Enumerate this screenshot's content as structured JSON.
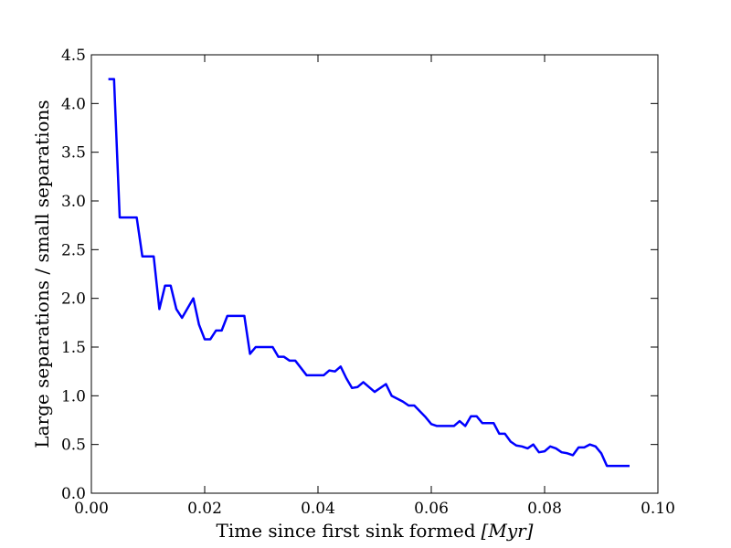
{
  "chart_data": {
    "type": "line",
    "title": "",
    "xlabel": "Time since first sink formed",
    "xlabel_unit": "[Myr]",
    "ylabel": "Large separations / small separations",
    "xlim": [
      0.0,
      0.1
    ],
    "ylim": [
      0.0,
      4.5
    ],
    "xticks": [
      "0.00",
      "0.02",
      "0.04",
      "0.06",
      "0.08",
      "0.10"
    ],
    "yticks": [
      "0.0",
      "0.5",
      "1.0",
      "1.5",
      "2.0",
      "2.5",
      "3.0",
      "3.5",
      "4.0",
      "4.5"
    ],
    "grid": false,
    "legend": "none",
    "series": [
      {
        "color": "#0000ff",
        "x": [
          0.003,
          0.004,
          0.005,
          0.008,
          0.009,
          0.011,
          0.012,
          0.013,
          0.014,
          0.015,
          0.016,
          0.018,
          0.019,
          0.02,
          0.021,
          0.022,
          0.023,
          0.024,
          0.027,
          0.028,
          0.029,
          0.032,
          0.033,
          0.034,
          0.035,
          0.036,
          0.038,
          0.041,
          0.042,
          0.043,
          0.044,
          0.045,
          0.046,
          0.047,
          0.048,
          0.05,
          0.052,
          0.053,
          0.055,
          0.056,
          0.057,
          0.059,
          0.06,
          0.061,
          0.062,
          0.064,
          0.065,
          0.066,
          0.067,
          0.068,
          0.069,
          0.071,
          0.072,
          0.073,
          0.074,
          0.075,
          0.076,
          0.077,
          0.078,
          0.079,
          0.08,
          0.081,
          0.082,
          0.083,
          0.084,
          0.085,
          0.086,
          0.087,
          0.088,
          0.089,
          0.09,
          0.091,
          0.093,
          0.095
        ],
        "y": [
          4.25,
          4.25,
          2.83,
          2.83,
          2.43,
          2.43,
          1.89,
          2.13,
          2.13,
          1.89,
          1.8,
          2.0,
          1.73,
          1.58,
          1.58,
          1.67,
          1.67,
          1.82,
          1.82,
          1.43,
          1.5,
          1.5,
          1.4,
          1.4,
          1.36,
          1.36,
          1.21,
          1.21,
          1.26,
          1.25,
          1.3,
          1.18,
          1.08,
          1.09,
          1.14,
          1.04,
          1.12,
          1.0,
          0.94,
          0.9,
          0.9,
          0.78,
          0.71,
          0.69,
          0.69,
          0.69,
          0.74,
          0.69,
          0.79,
          0.79,
          0.72,
          0.72,
          0.61,
          0.61,
          0.53,
          0.49,
          0.48,
          0.46,
          0.5,
          0.42,
          0.43,
          0.48,
          0.46,
          0.42,
          0.41,
          0.39,
          0.47,
          0.47,
          0.5,
          0.48,
          0.41,
          0.28,
          0.28,
          0.28
        ]
      }
    ]
  }
}
